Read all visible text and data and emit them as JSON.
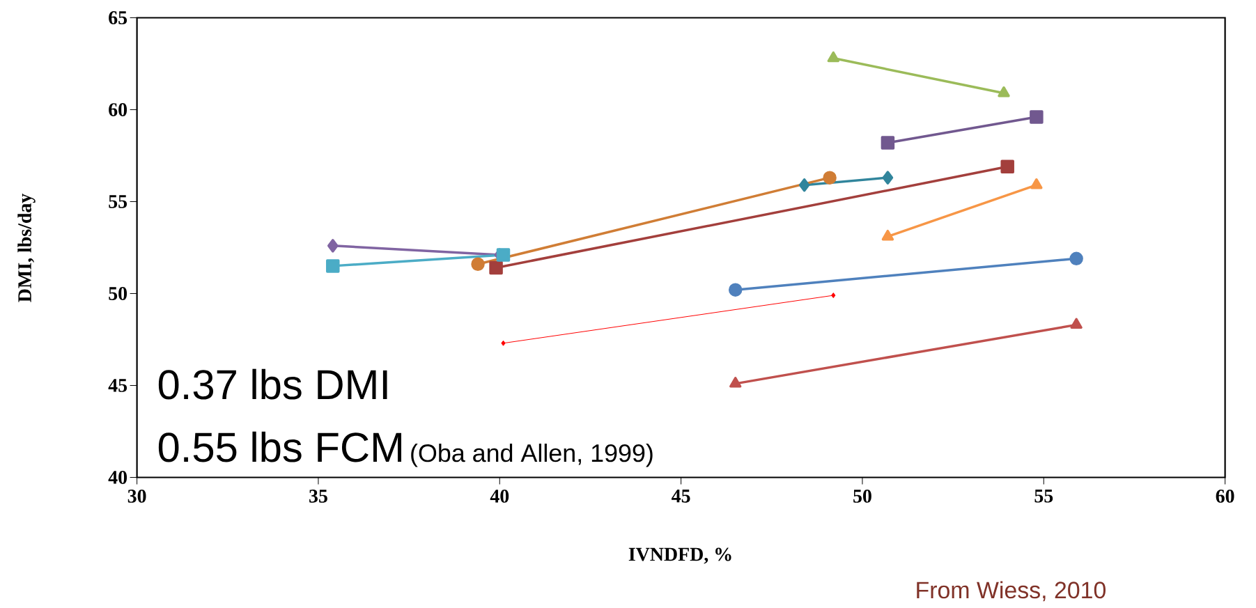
{
  "chart_data": {
    "type": "line",
    "xlabel": "IVNDFD, %",
    "ylabel": "DMI, lbs/day",
    "xlim": [
      30,
      60
    ],
    "xticks": [
      30,
      35,
      40,
      45,
      50,
      55,
      60
    ],
    "ylim": [
      40,
      65
    ],
    "yticks": [
      40,
      45,
      50,
      55,
      60,
      65
    ],
    "grid": false,
    "annotations": [
      "0.37 lbs DMI",
      "0.55 lbs FCM",
      "(Oba and Allen, 1999)",
      "From Wiess, 2010"
    ],
    "series": [
      {
        "color": "#9bbb59",
        "marker": "triangle",
        "x": [
          49.2,
          53.9
        ],
        "values": [
          62.8,
          60.9
        ]
      },
      {
        "color": "#71588f",
        "marker": "square",
        "x": [
          50.7,
          54.8
        ],
        "values": [
          58.2,
          59.6
        ]
      },
      {
        "color": "#31859c",
        "marker": "diamond",
        "x": [
          48.4,
          50.7
        ],
        "values": [
          55.9,
          56.3
        ]
      },
      {
        "color": "#d07d35",
        "marker": "circle",
        "x": [
          39.4,
          49.1
        ],
        "values": [
          51.6,
          56.3
        ]
      },
      {
        "color": "#a33f3c",
        "marker": "square",
        "x": [
          39.9,
          54.0
        ],
        "values": [
          51.4,
          56.9
        ]
      },
      {
        "color": "#f79646",
        "marker": "triangle",
        "x": [
          50.7,
          54.8
        ],
        "values": [
          53.1,
          55.9
        ]
      },
      {
        "color": "#4f81bd",
        "marker": "circle",
        "x": [
          46.5,
          55.9
        ],
        "values": [
          50.2,
          51.9
        ]
      },
      {
        "color": "#ff0000",
        "marker": "diamond",
        "x": [
          40.1,
          49.2
        ],
        "values": [
          47.3,
          49.9
        ]
      },
      {
        "color": "#c0504d",
        "marker": "triangle",
        "x": [
          46.5,
          55.9
        ],
        "values": [
          45.1,
          48.3
        ]
      },
      {
        "color": "#8064a2",
        "marker": "diamond",
        "x": [
          35.4,
          40.0
        ],
        "values": [
          52.6,
          52.1
        ]
      },
      {
        "color": "#4bacc6",
        "marker": "square",
        "x": [
          35.4,
          40.1
        ],
        "values": [
          51.5,
          52.1
        ]
      }
    ]
  }
}
